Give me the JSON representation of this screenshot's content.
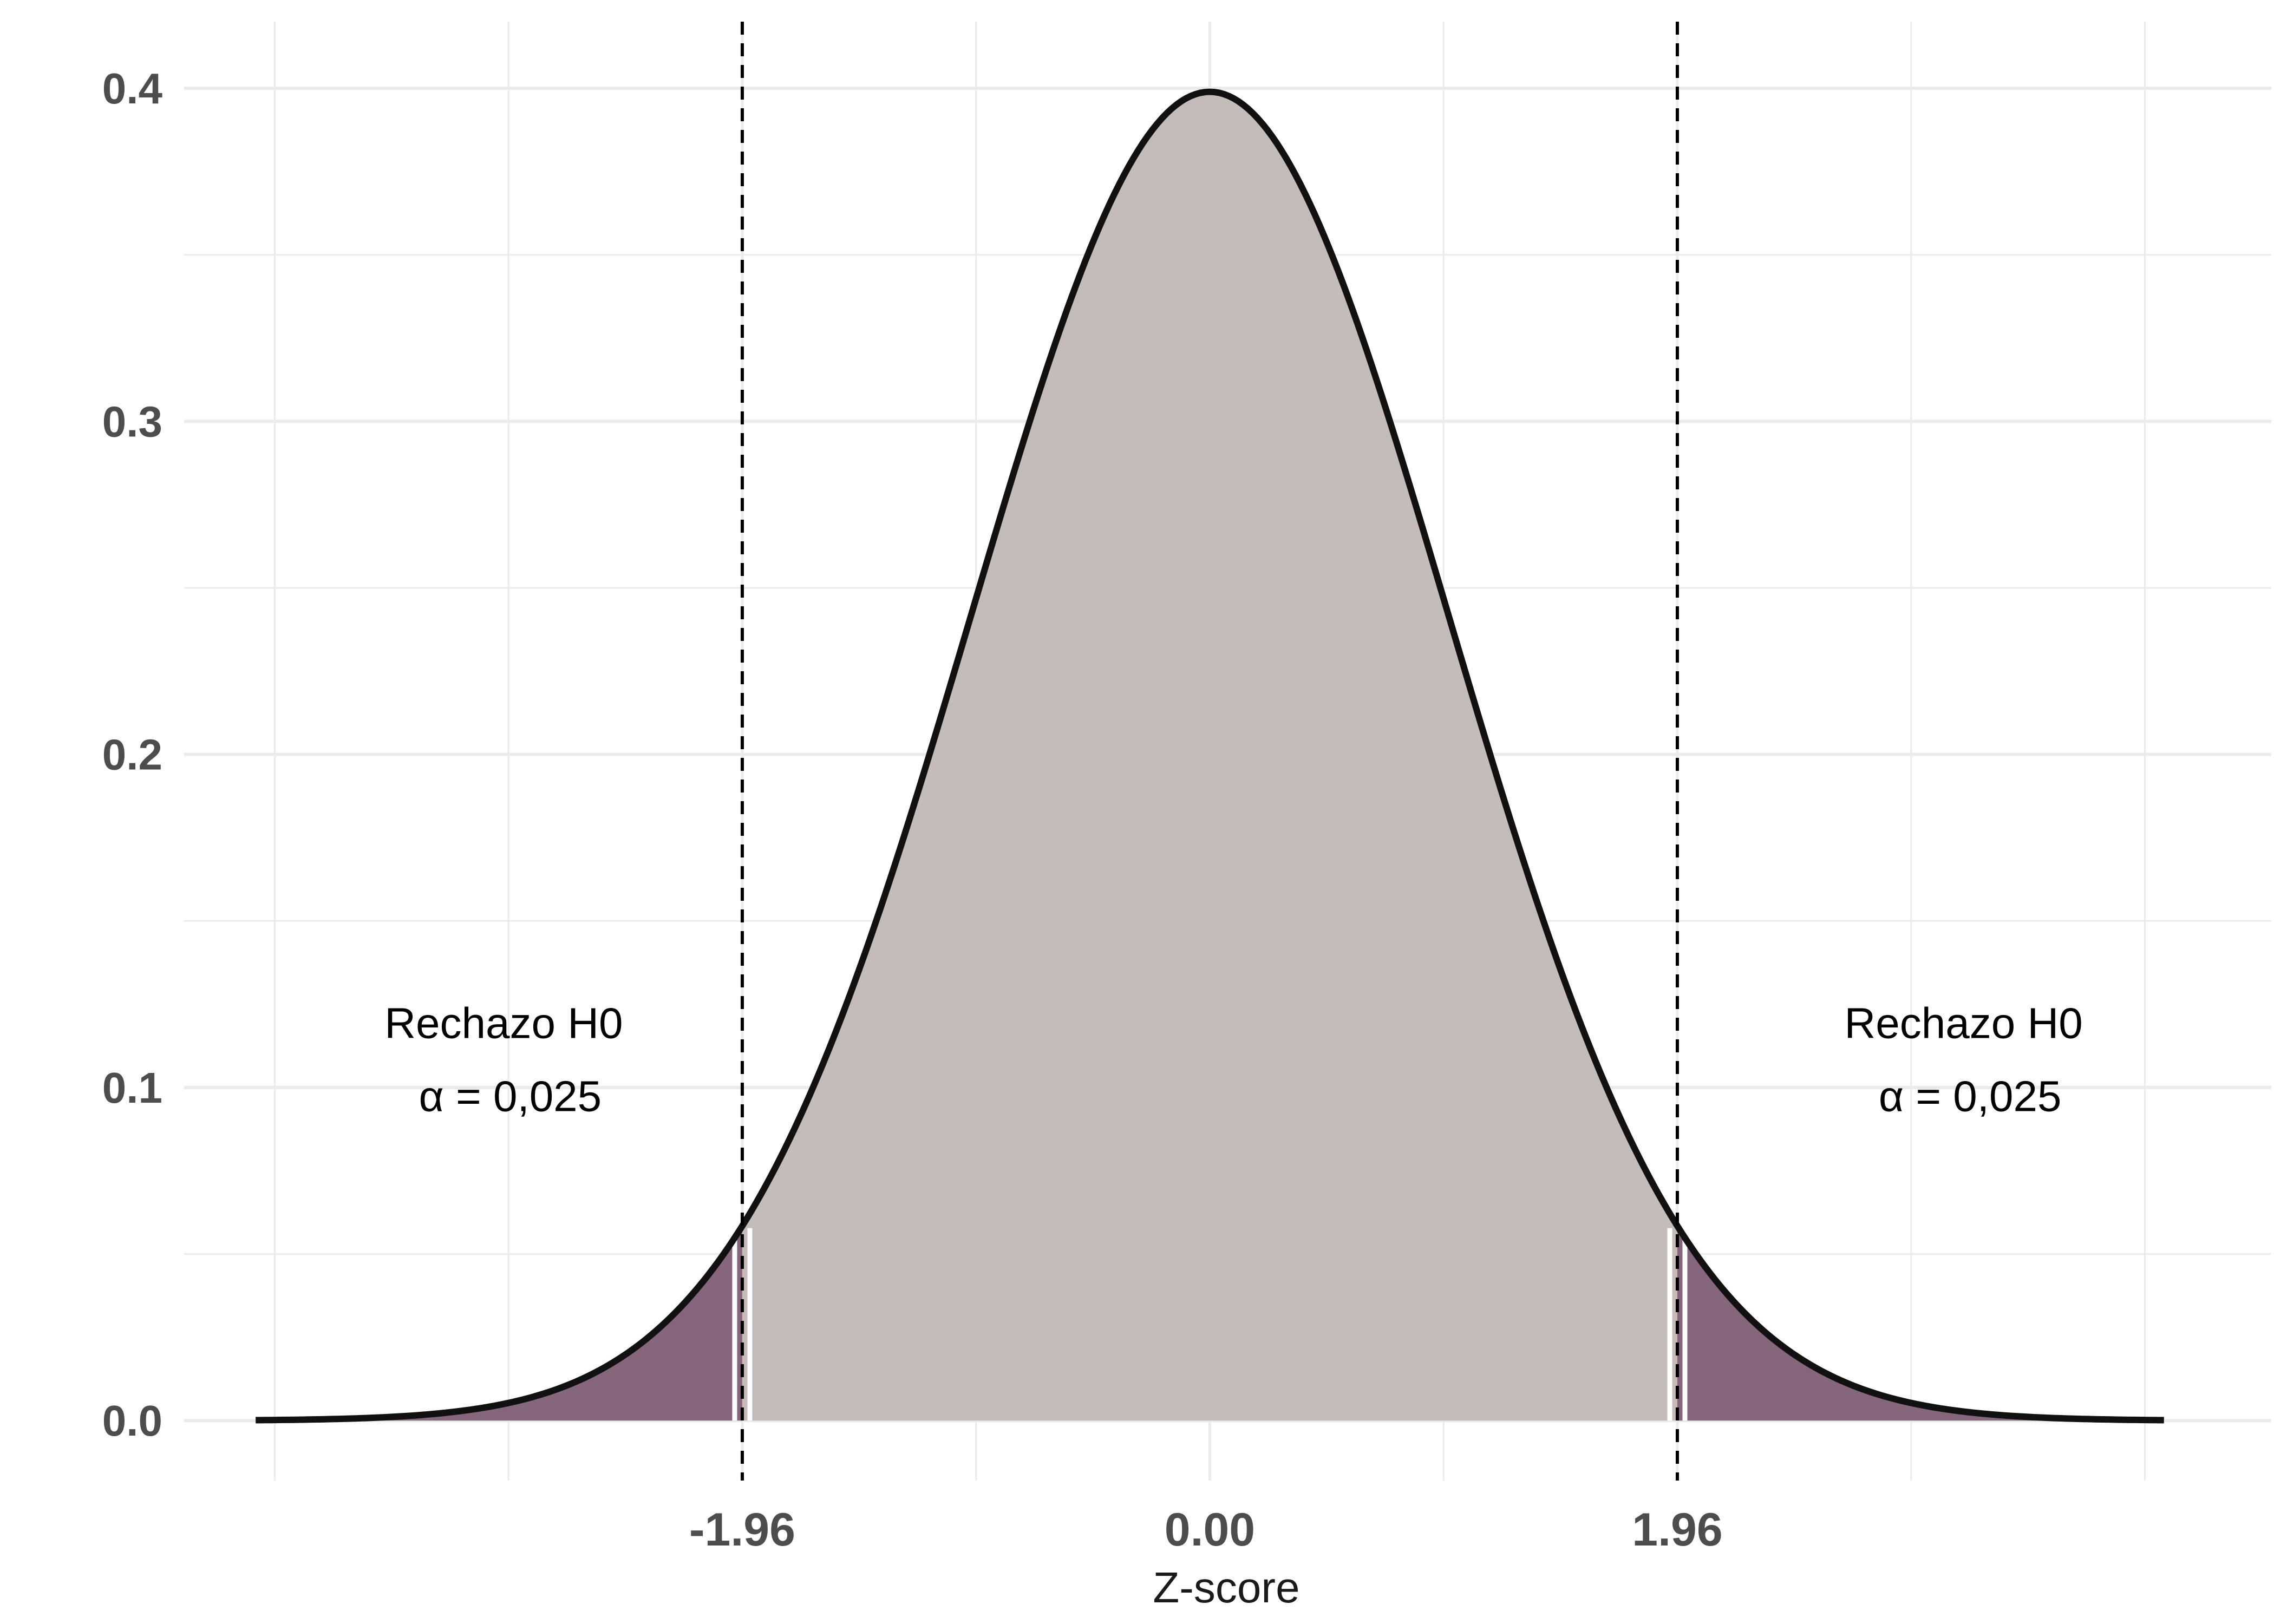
{
  "chart_data": {
    "type": "area",
    "title": "",
    "xlabel": "Z-score",
    "ylabel": "",
    "xlim": [
      -4.3,
      4.45
    ],
    "ylim": [
      -0.018,
      0.42
    ],
    "grid": true,
    "x_ticks": [
      {
        "value": -1.96,
        "label": "-1.96"
      },
      {
        "value": 0,
        "label": "0.00"
      },
      {
        "value": 1.96,
        "label": "1.96"
      }
    ],
    "x_minor_gridlines": [
      -3.92,
      -2.94,
      -0.98,
      0.98,
      2.94,
      3.92
    ],
    "y_ticks": [
      {
        "value": 0.0,
        "label": "0.0"
      },
      {
        "value": 0.1,
        "label": "0.1"
      },
      {
        "value": 0.2,
        "label": "0.2"
      },
      {
        "value": 0.3,
        "label": "0.3"
      },
      {
        "value": 0.4,
        "label": "0.4"
      }
    ],
    "y_minor_gridlines": [
      0.05,
      0.15,
      0.25,
      0.35
    ],
    "series": [
      {
        "distribution": "standard normal density",
        "x_range": [
          -4,
          4
        ],
        "x": [
          -4.0,
          -3.5,
          -3.0,
          -2.5,
          -1.96,
          -1.5,
          -1.0,
          -0.5,
          0.0,
          0.5,
          1.0,
          1.5,
          1.96,
          2.5,
          3.0,
          3.5,
          4.0
        ],
        "y": [
          0.0001,
          0.0009,
          0.0044,
          0.0175,
          0.0584,
          0.1295,
          0.242,
          0.3521,
          0.3989,
          0.3521,
          0.242,
          0.1295,
          0.0584,
          0.0175,
          0.0044,
          0.0009,
          0.0001
        ]
      }
    ],
    "regions": [
      {
        "from": -4,
        "to": -1.96,
        "color": "#85667c"
      },
      {
        "from": -1.96,
        "to": 1.96,
        "color": "#c4bcb9"
      },
      {
        "from": 1.96,
        "to": 4,
        "color": "#85667c"
      }
    ],
    "critical_lines": [
      -1.96,
      1.96
    ],
    "colors": {
      "curve": "#111111",
      "grid": "#ebebeb",
      "critical_line": "#000000",
      "background": "#ffffff"
    },
    "annotations": [
      {
        "x": -2.96,
        "y": 0.11,
        "line1": "Rechazo H0",
        "line2": "α = 0,025"
      },
      {
        "x": 3.16,
        "y": 0.11,
        "line1": "Rechazo H0",
        "line2": "α = 0,025"
      }
    ]
  }
}
